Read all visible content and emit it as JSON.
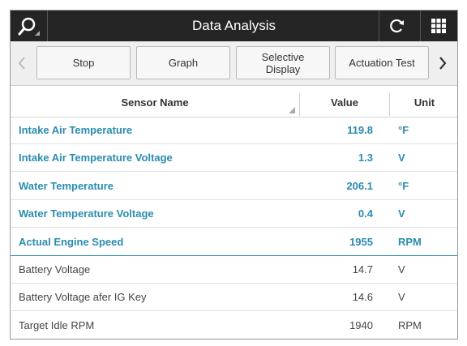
{
  "header": {
    "title": "Data Analysis"
  },
  "toolbar": {
    "buttons": [
      "Stop",
      "Graph",
      "Selective Display",
      "Actuation Test"
    ]
  },
  "table": {
    "columns": [
      "Sensor Name",
      "Value",
      "Unit"
    ],
    "rows": [
      {
        "name": "Intake Air Temperature",
        "value": "119.8",
        "unit": "°F",
        "highlighted": true
      },
      {
        "name": "Intake Air Temperature Voltage",
        "value": "1.3",
        "unit": "V",
        "highlighted": true
      },
      {
        "name": "Water Temperature",
        "value": "206.1",
        "unit": "°F",
        "highlighted": true
      },
      {
        "name": "Water Temperature Voltage",
        "value": "0.4",
        "unit": "V",
        "highlighted": true
      },
      {
        "name": "Actual Engine Speed",
        "value": "1955",
        "unit": "RPM",
        "highlighted": true
      },
      {
        "name": "Battery Voltage",
        "value": "14.7",
        "unit": "V",
        "highlighted": false
      },
      {
        "name": "Battery Voltage afer IG Key",
        "value": "14.6",
        "unit": "V",
        "highlighted": false
      },
      {
        "name": "Target Idle RPM",
        "value": "1940",
        "unit": "RPM",
        "highlighted": false
      }
    ]
  }
}
